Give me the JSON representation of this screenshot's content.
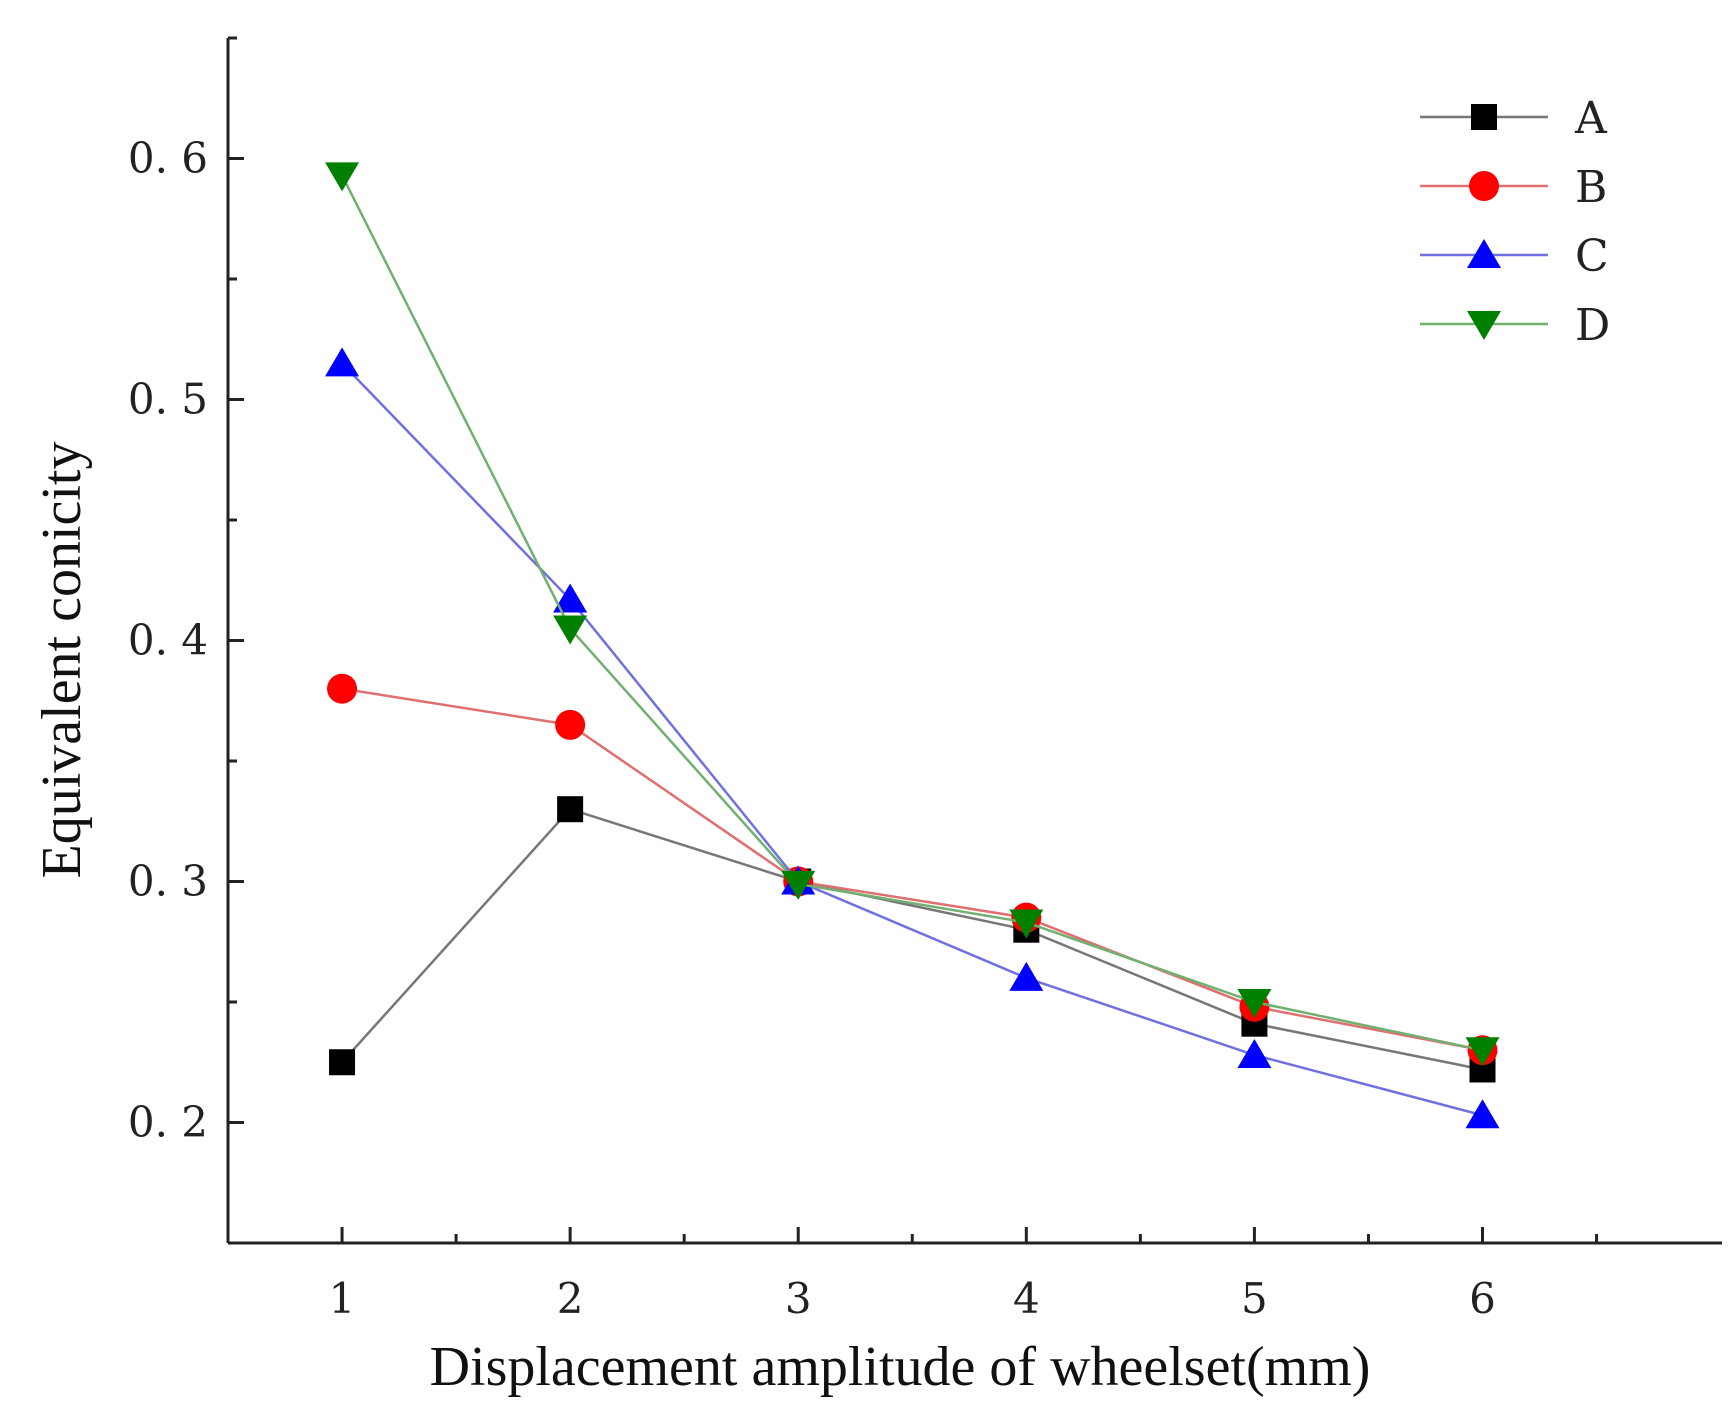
{
  "chart_data": {
    "type": "line",
    "title": "",
    "xlabel": "Displacement amplitude of wheelset(mm)",
    "ylabel": "Equivalent conicity",
    "x": [
      1,
      2,
      3,
      4,
      5,
      6
    ],
    "x_ticks": [
      "1",
      "2",
      "3",
      "4",
      "5",
      "6"
    ],
    "y_ticks": [
      "0.2",
      "0.3",
      "0.4",
      "0.5",
      "0.6"
    ],
    "xlim": [
      0.5,
      7.05
    ],
    "ylim": [
      0.15,
      0.65
    ],
    "legend_position": "top-right",
    "grid": false,
    "series": [
      {
        "name": "A",
        "marker": "square",
        "color": "#000000",
        "line_color": "#777777",
        "values": [
          0.225,
          0.33,
          0.3,
          0.28,
          0.241,
          0.222
        ]
      },
      {
        "name": "B",
        "marker": "circle",
        "color": "#ff0000",
        "line_color": "#e07070",
        "values": [
          0.38,
          0.365,
          0.3,
          0.285,
          0.248,
          0.23
        ]
      },
      {
        "name": "C",
        "marker": "triangle-up",
        "color": "#0000ff",
        "line_color": "#7070e0",
        "values": [
          0.515,
          0.417,
          0.3,
          0.26,
          0.228,
          0.203
        ]
      },
      {
        "name": "D",
        "marker": "triangle-down",
        "color": "#008000",
        "line_color": "#70b070",
        "values": [
          0.593,
          0.405,
          0.299,
          0.283,
          0.25,
          0.23
        ]
      }
    ]
  }
}
